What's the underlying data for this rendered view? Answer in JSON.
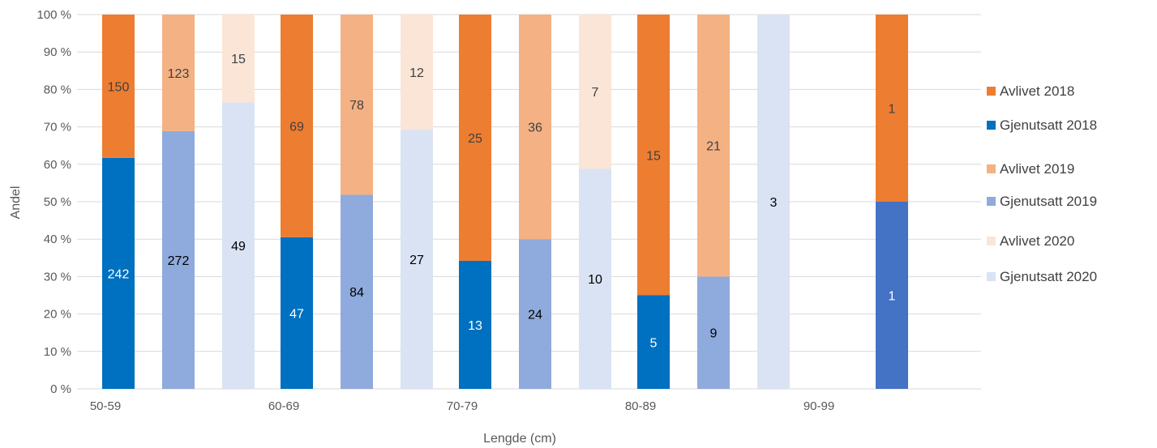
{
  "chart_data": {
    "type": "bar",
    "stacked": "percent",
    "xlabel": "Lengde (cm)",
    "ylabel": "Andel",
    "ylim": [
      0,
      100
    ],
    "yticks": [
      "0 %",
      "10 %",
      "20 %",
      "30 %",
      "40 %",
      "50 %",
      "60 %",
      "70 %",
      "80 %",
      "90 %",
      "100 %"
    ],
    "grid": true,
    "legend_position": "right",
    "categories": [
      "50-59",
      "60-69",
      "70-79",
      "80-89",
      "90-99"
    ],
    "groups": [
      {
        "year": "2018",
        "gjenutsatt": {
          "name": "Gjenutsatt 2018",
          "color": "#0070C0",
          "label_color": "#ffffff",
          "values": [
            242,
            47,
            13,
            5,
            1
          ],
          "extra_colors": {
            "4": "#4472C4"
          }
        },
        "avlivet": {
          "name": "Avlivet 2018",
          "color": "#ED7D31",
          "label_color": "#404040",
          "values": [
            150,
            69,
            25,
            15,
            1
          ]
        }
      },
      {
        "year": "2019",
        "gjenutsatt": {
          "name": "Gjenutsatt 2019",
          "color": "#8FAADC",
          "label_color": "#000000",
          "values": [
            272,
            84,
            24,
            9,
            null
          ]
        },
        "avlivet": {
          "name": "Avlivet 2019",
          "color": "#F4B183",
          "label_color": "#404040",
          "values": [
            123,
            78,
            36,
            21,
            null
          ]
        }
      },
      {
        "year": "2020",
        "gjenutsatt": {
          "name": "Gjenutsatt 2020",
          "color": "#DAE3F3",
          "label_color": "#000000",
          "values": [
            49,
            27,
            10,
            3,
            null
          ]
        },
        "avlivet": {
          "name": "Avlivet 2020",
          "color": "#FBE5D6",
          "label_color": "#404040",
          "values": [
            15,
            12,
            7,
            0,
            null
          ]
        }
      }
    ],
    "legend": [
      "Avlivet 2018",
      "Gjenutsatt 2018",
      "Avlivet 2019",
      "Gjenutsatt 2019",
      "Avlivet 2020",
      "Gjenutsatt 2020"
    ]
  }
}
